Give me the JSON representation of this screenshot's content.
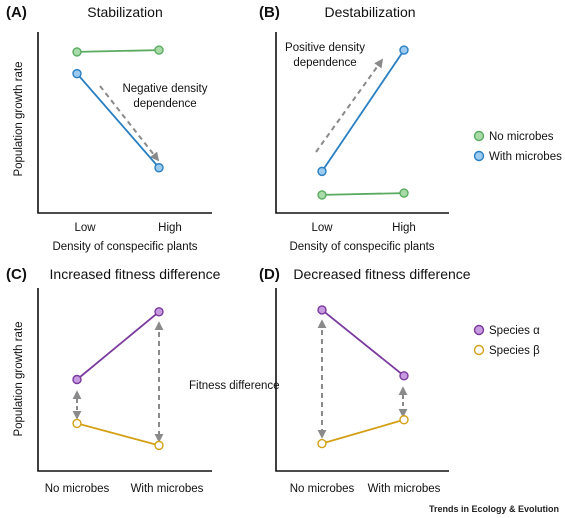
{
  "panels": [
    {
      "letter": "(A)",
      "title": "Stabilization",
      "ylabel": "Population growth rate",
      "xlabel": "Density of conspecific plants",
      "categories": [
        "Low",
        "High"
      ],
      "annotation": [
        "Negative density",
        "dependence"
      ]
    },
    {
      "letter": "(B)",
      "title": "Destabilization",
      "ylabel": "",
      "xlabel": "Density of conspecific plants",
      "categories": [
        "Low",
        "High"
      ],
      "annotation": [
        "Positive density",
        "dependence"
      ]
    },
    {
      "letter": "(C)",
      "title": "Increased fitness difference",
      "ylabel": "Population growth rate",
      "xlabel": "",
      "categories": [
        "No microbes",
        "With microbes"
      ],
      "annotation": [
        "Fitness difference"
      ]
    },
    {
      "letter": "(D)",
      "title": "Decreased fitness difference",
      "ylabel": "",
      "xlabel": "",
      "categories": [
        "No microbes",
        "With microbes"
      ],
      "annotation": []
    }
  ],
  "legends": [
    {
      "items": [
        {
          "label": "No microbes",
          "color": "#5aab61",
          "fill": "#a9dba9"
        },
        {
          "label": "With microbes",
          "color": "#2a7fc2",
          "fill": "#9ccbef"
        }
      ]
    },
    {
      "items": [
        {
          "label": "Species α",
          "color": "#7b3a9e",
          "fill": "#c79be0"
        },
        {
          "label": "Species β",
          "color": "#d4a017",
          "fill": "#ffffff"
        }
      ]
    }
  ],
  "credit": "Trends in Ecology & Evolution",
  "chart_data": [
    {
      "type": "line",
      "title": "Stabilization",
      "categories": [
        "Low",
        "High"
      ],
      "xlabel": "Density of conspecific plants",
      "ylabel": "Population growth rate",
      "ylim": [
        0,
        1
      ],
      "series": [
        {
          "name": "No microbes",
          "values": [
            0.89,
            0.9
          ]
        },
        {
          "name": "With microbes",
          "values": [
            0.77,
            0.25
          ]
        }
      ]
    },
    {
      "type": "line",
      "title": "Destabilization",
      "categories": [
        "Low",
        "High"
      ],
      "xlabel": "Density of conspecific plants",
      "ylim": [
        0,
        1
      ],
      "series": [
        {
          "name": "No microbes",
          "values": [
            0.1,
            0.11
          ]
        },
        {
          "name": "With microbes",
          "values": [
            0.23,
            0.9
          ]
        }
      ]
    },
    {
      "type": "line",
      "title": "Increased fitness difference",
      "categories": [
        "No microbes",
        "With microbes"
      ],
      "ylabel": "Population growth rate",
      "ylim": [
        0,
        1
      ],
      "series": [
        {
          "name": "Species α",
          "values": [
            0.5,
            0.87
          ]
        },
        {
          "name": "Species β",
          "values": [
            0.26,
            0.14
          ]
        }
      ]
    },
    {
      "type": "line",
      "title": "Decreased fitness difference",
      "categories": [
        "No microbes",
        "With microbes"
      ],
      "ylim": [
        0,
        1
      ],
      "series": [
        {
          "name": "Species α",
          "values": [
            0.88,
            0.52
          ]
        },
        {
          "name": "Species β",
          "values": [
            0.15,
            0.28
          ]
        }
      ]
    }
  ]
}
